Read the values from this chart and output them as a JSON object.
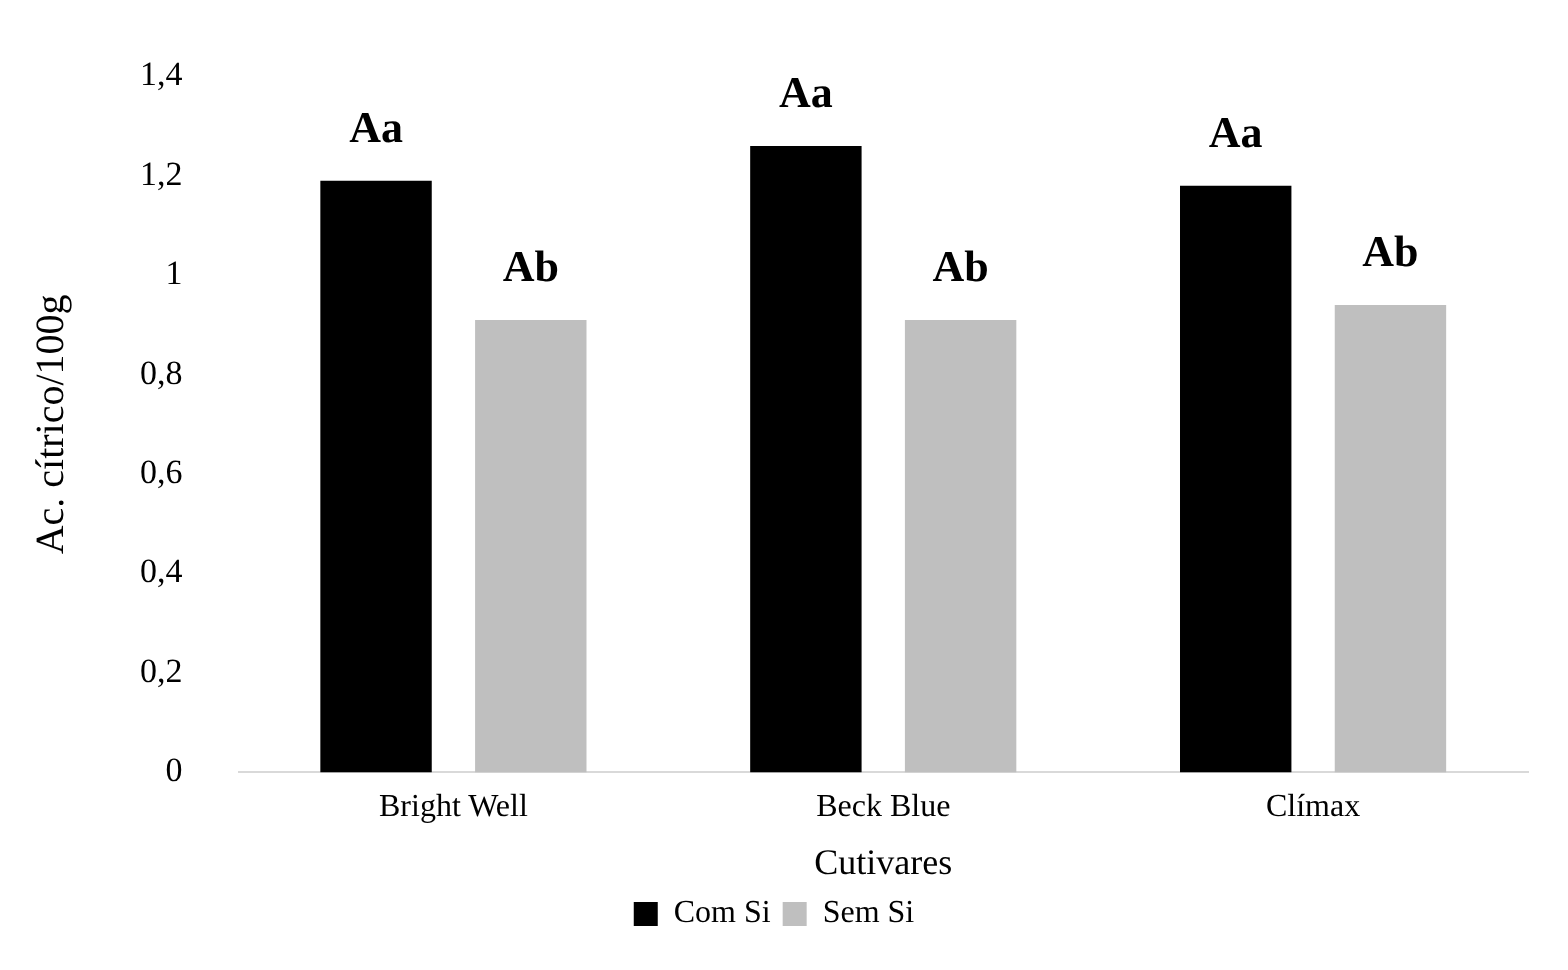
{
  "chart_data": {
    "type": "bar",
    "xlabel": "Cutivares",
    "ylabel": "Ac. cítrico/100g",
    "categories": [
      "Bright Well",
      "Beck Blue",
      "Clímax"
    ],
    "series": [
      {
        "name": "Com Si",
        "color": "#000000",
        "values": [
          1.19,
          1.26,
          1.18
        ],
        "value_labels": [
          "Aa",
          "Aa",
          "Aa"
        ]
      },
      {
        "name": "Sem Si",
        "color": "#bfbfbf",
        "values": [
          0.91,
          0.91,
          0.94
        ],
        "value_labels": [
          "Ab",
          "Ab",
          "Ab"
        ]
      }
    ],
    "ylim": [
      0,
      1.4
    ],
    "yticks": [
      0,
      {
        "value": 0.2,
        "label": "0,2"
      },
      {
        "value": 0.4,
        "label": "0,4"
      },
      {
        "value": 0.6,
        "label": "0,6"
      },
      {
        "value": 0.8,
        "label": "0,8"
      },
      1,
      {
        "value": 1.2,
        "label": "1,2"
      },
      {
        "value": 1.4,
        "label": "1,4"
      }
    ],
    "grid": false,
    "legend": "bottom"
  }
}
